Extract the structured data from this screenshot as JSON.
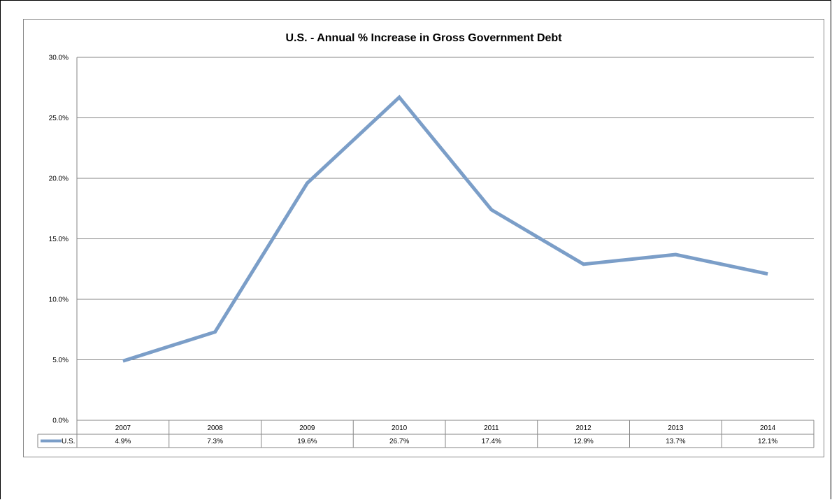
{
  "chart_data": {
    "type": "line",
    "title": "U.S. - Annual % Increase in Gross Government Debt",
    "categories": [
      "2007",
      "2008",
      "2009",
      "2010",
      "2011",
      "2012",
      "2013",
      "2014"
    ],
    "series": [
      {
        "name": "U.S.",
        "values": [
          4.9,
          7.3,
          19.6,
          26.7,
          17.4,
          12.9,
          13.7,
          12.1
        ],
        "labels": [
          "4.9%",
          "7.3%",
          "19.6%",
          "26.7%",
          "17.4%",
          "12.9%",
          "13.7%",
          "12.1%"
        ],
        "color": "#7b9ec8"
      }
    ],
    "yticks": [
      "0.0%",
      "5.0%",
      "10.0%",
      "15.0%",
      "20.0%",
      "25.0%",
      "30.0%"
    ],
    "ylim": [
      0,
      30
    ],
    "grid": true,
    "data_table": true
  }
}
